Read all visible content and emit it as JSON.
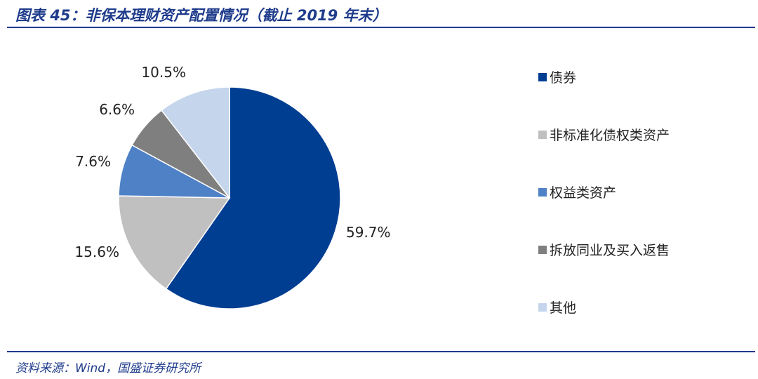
{
  "header": {
    "title": "图表 45：非保本理财资产配置情况（截止 2019 年末）"
  },
  "footer": {
    "source": "资料来源：Wind，国盛证券研究所"
  },
  "chart_data": {
    "type": "pie",
    "title": "图表 45：非保本理财资产配置情况（截止 2019 年末）",
    "categories": [
      "债券",
      "非标准化债权类资产",
      "权益类资产",
      "拆放同业及买入返售",
      "其他"
    ],
    "values": [
      59.7,
      15.6,
      7.6,
      6.6,
      10.5
    ],
    "labels": [
      "59.7%",
      "15.6%",
      "7.6%",
      "6.6%",
      "10.5%"
    ],
    "colors": [
      "#003e92",
      "#c0c0c0",
      "#4f81c7",
      "#7f7f7f",
      "#c5d5ec"
    ],
    "legend_position": "right",
    "unit": "%"
  }
}
